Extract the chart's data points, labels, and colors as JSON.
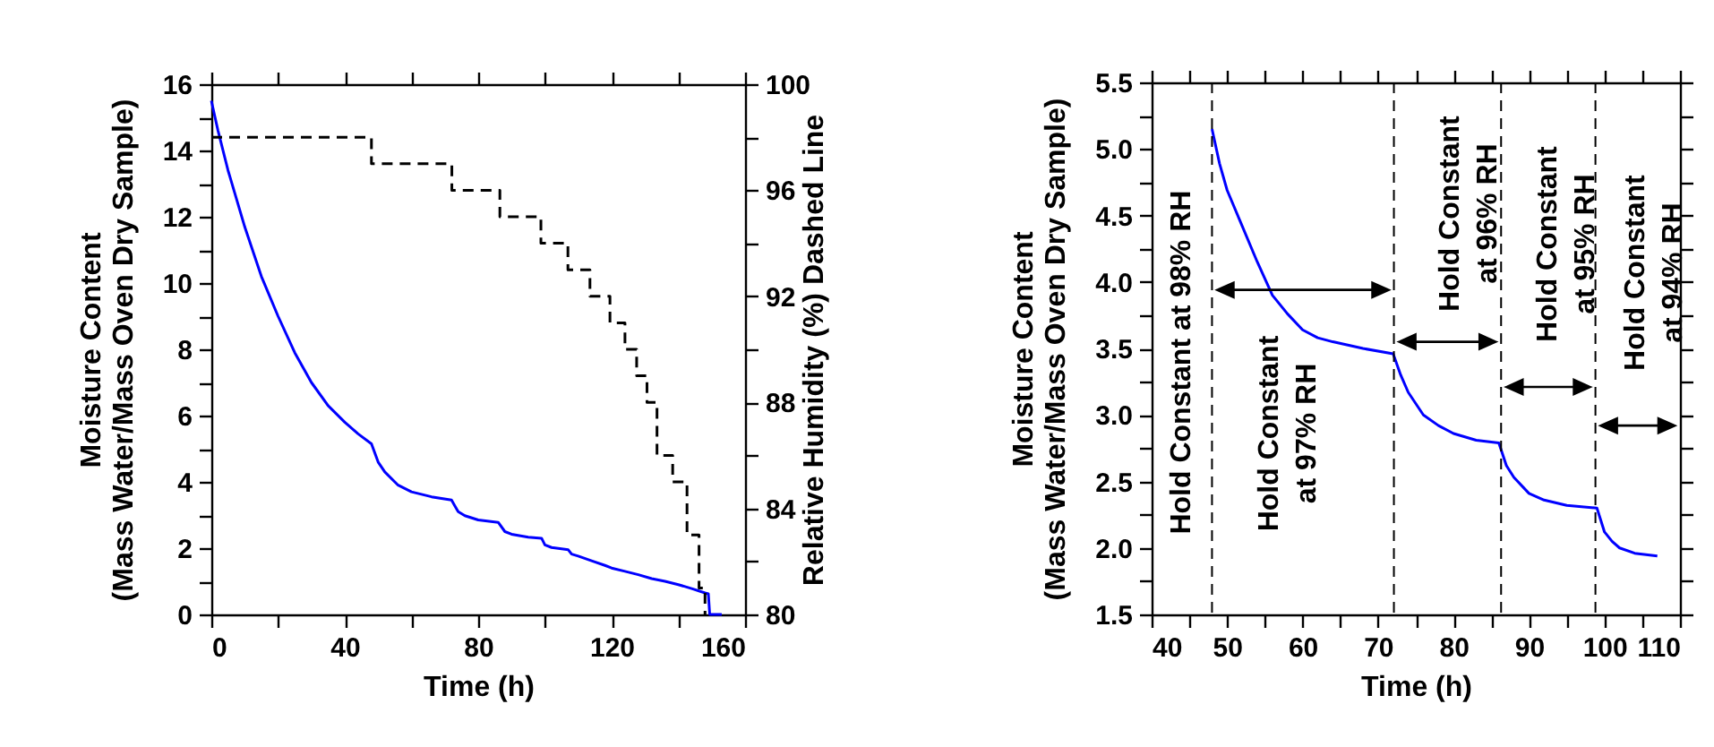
{
  "chart_data": [
    {
      "type": "line",
      "xlabel": "Time (h)",
      "ylabel": "Moisture Content\n(Mass Water/Mass Oven Dry Sample)",
      "y2label": "Relative Humidity (%) Dashed Line",
      "xlim": [
        0,
        160
      ],
      "xticks": [
        0,
        {
          "value": 20,
          "label": null
        },
        40,
        {
          "value": 60,
          "label": null
        },
        80,
        {
          "value": 100,
          "label": null
        },
        120,
        {
          "value": 140,
          "label": null
        },
        160
      ],
      "ylim": [
        0,
        16
      ],
      "yticks": [
        0,
        {
          "value": 1,
          "label": null
        },
        2,
        {
          "value": 3,
          "label": null
        },
        4,
        {
          "value": 5,
          "label": null
        },
        6,
        {
          "value": 7,
          "label": null
        },
        8,
        {
          "value": 9,
          "label": null
        },
        10,
        {
          "value": 11,
          "label": null
        },
        12,
        {
          "value": 13,
          "label": null
        },
        14,
        {
          "value": 15,
          "label": null
        },
        16
      ],
      "y2lim": [
        80,
        100
      ],
      "y2ticks": [
        80,
        {
          "value": 82,
          "label": null
        },
        84,
        {
          "value": 86,
          "label": null
        },
        88,
        {
          "value": 90,
          "label": null
        },
        92,
        {
          "value": 94,
          "label": null
        },
        96,
        {
          "value": 98,
          "label": null
        },
        100
      ],
      "series": [
        {
          "color": "#0000ff",
          "x": [
            0,
            2,
            5,
            10,
            15,
            20,
            25,
            30,
            35,
            40,
            44,
            48,
            50,
            52,
            56,
            60,
            66,
            72,
            74,
            76,
            80,
            86,
            88,
            90,
            95,
            99,
            100,
            102,
            107,
            108,
            110,
            114,
            118,
            120,
            124,
            128,
            132,
            136,
            140,
            144,
            148,
            149,
            149.4,
            153
          ],
          "values": [
            15.5,
            14.6,
            13.4,
            11.7,
            10.2,
            9.0,
            7.9,
            7.0,
            6.3,
            5.8,
            5.45,
            5.15,
            4.6,
            4.3,
            3.9,
            3.7,
            3.55,
            3.45,
            3.1,
            2.98,
            2.85,
            2.78,
            2.5,
            2.42,
            2.33,
            2.3,
            2.1,
            2.02,
            1.95,
            1.82,
            1.76,
            1.62,
            1.48,
            1.4,
            1.3,
            1.2,
            1.08,
            1.0,
            0.9,
            0.78,
            0.65,
            0.62,
            0,
            0
          ]
        },
        {
          "type": "step",
          "axis": "y2",
          "color": "#000000",
          "line_style": "dashed",
          "x": [
            0,
            48,
            72.1,
            86.5,
            98.8,
            106.9,
            113.5,
            119.5,
            124,
            127.5,
            130.6,
            133.6,
            138.3,
            142.6,
            146.2,
            148
          ],
          "values": [
            98,
            97,
            96,
            95,
            94,
            93,
            92,
            91,
            90,
            89,
            88,
            86,
            85,
            83,
            81,
            80
          ]
        }
      ]
    },
    {
      "type": "line",
      "xlabel": "Time (h)",
      "ylabel": "Moisture Content\n(Mass Water/Mass Oven Dry Sample)",
      "xlim": [
        40,
        110
      ],
      "xticks": [
        40,
        {
          "value": 45,
          "label": null
        },
        50,
        {
          "value": 55,
          "label": null
        },
        60,
        {
          "value": 65,
          "label": null
        },
        70,
        {
          "value": 75,
          "label": null
        },
        80,
        {
          "value": 85,
          "label": null
        },
        90,
        {
          "value": 95,
          "label": null
        },
        100,
        {
          "value": 105,
          "label": null
        },
        110
      ],
      "ylim": [
        1.5,
        5.5
      ],
      "yticks": [
        1.5,
        {
          "value": 1.75,
          "label": null
        },
        {
          "value": 2,
          "label": "2.0"
        },
        {
          "value": 2.25,
          "label": null
        },
        2.5,
        {
          "value": 2.75,
          "label": null
        },
        {
          "value": 3,
          "label": "3.0"
        },
        {
          "value": 3.25,
          "label": null
        },
        3.5,
        {
          "value": 3.75,
          "label": null
        },
        {
          "value": 4,
          "label": "4.0"
        },
        {
          "value": 4.25,
          "label": null
        },
        4.5,
        {
          "value": 4.75,
          "label": null
        },
        {
          "value": 5,
          "label": "5.0"
        },
        {
          "value": 5.25,
          "label": null
        },
        5.5
      ],
      "series": [
        {
          "color": "#0000ff",
          "x": [
            48,
            49,
            50,
            52,
            54,
            56,
            58,
            60,
            62,
            64,
            68,
            72,
            73,
            74,
            76,
            78,
            80,
            83,
            86,
            87,
            88,
            90,
            92,
            95,
            99,
            100,
            101,
            102,
            104,
            107
          ],
          "values": [
            5.15,
            4.89,
            4.69,
            4.42,
            4.15,
            3.9,
            3.76,
            3.64,
            3.58,
            3.55,
            3.5,
            3.46,
            3.3,
            3.17,
            3.0,
            2.92,
            2.86,
            2.81,
            2.79,
            2.62,
            2.53,
            2.41,
            2.36,
            2.32,
            2.3,
            2.12,
            2.05,
            2.0,
            1.96,
            1.94
          ]
        }
      ],
      "ref_lines": [
        {
          "axis": "x",
          "value": 48,
          "color": "#000000",
          "line_style": "dashed"
        },
        {
          "axis": "x",
          "value": 72.1,
          "color": "#000000",
          "line_style": "dashed"
        },
        {
          "axis": "x",
          "value": 86.3,
          "color": "#000000",
          "line_style": "dashed"
        },
        {
          "axis": "x",
          "value": 98.8,
          "color": "#000000",
          "line_style": "dashed"
        }
      ],
      "annotations": [
        {
          "text": "Hold Constant at 98% RH",
          "x": 48,
          "y": 3.94
        },
        {
          "text": "Hold Constant\nat 97% RH",
          "x": 48,
          "y": 3.94
        },
        {
          "text": "Hold Constant\nat 96% RH",
          "x": 72.1,
          "y": 3.55
        },
        {
          "text": "Hold Constant\nat 95% RH",
          "x": 86.3,
          "y": 3.21
        },
        {
          "text": "Hold Constant\nat 94% RH",
          "x": 98.8,
          "y": 2.92
        }
      ]
    }
  ]
}
